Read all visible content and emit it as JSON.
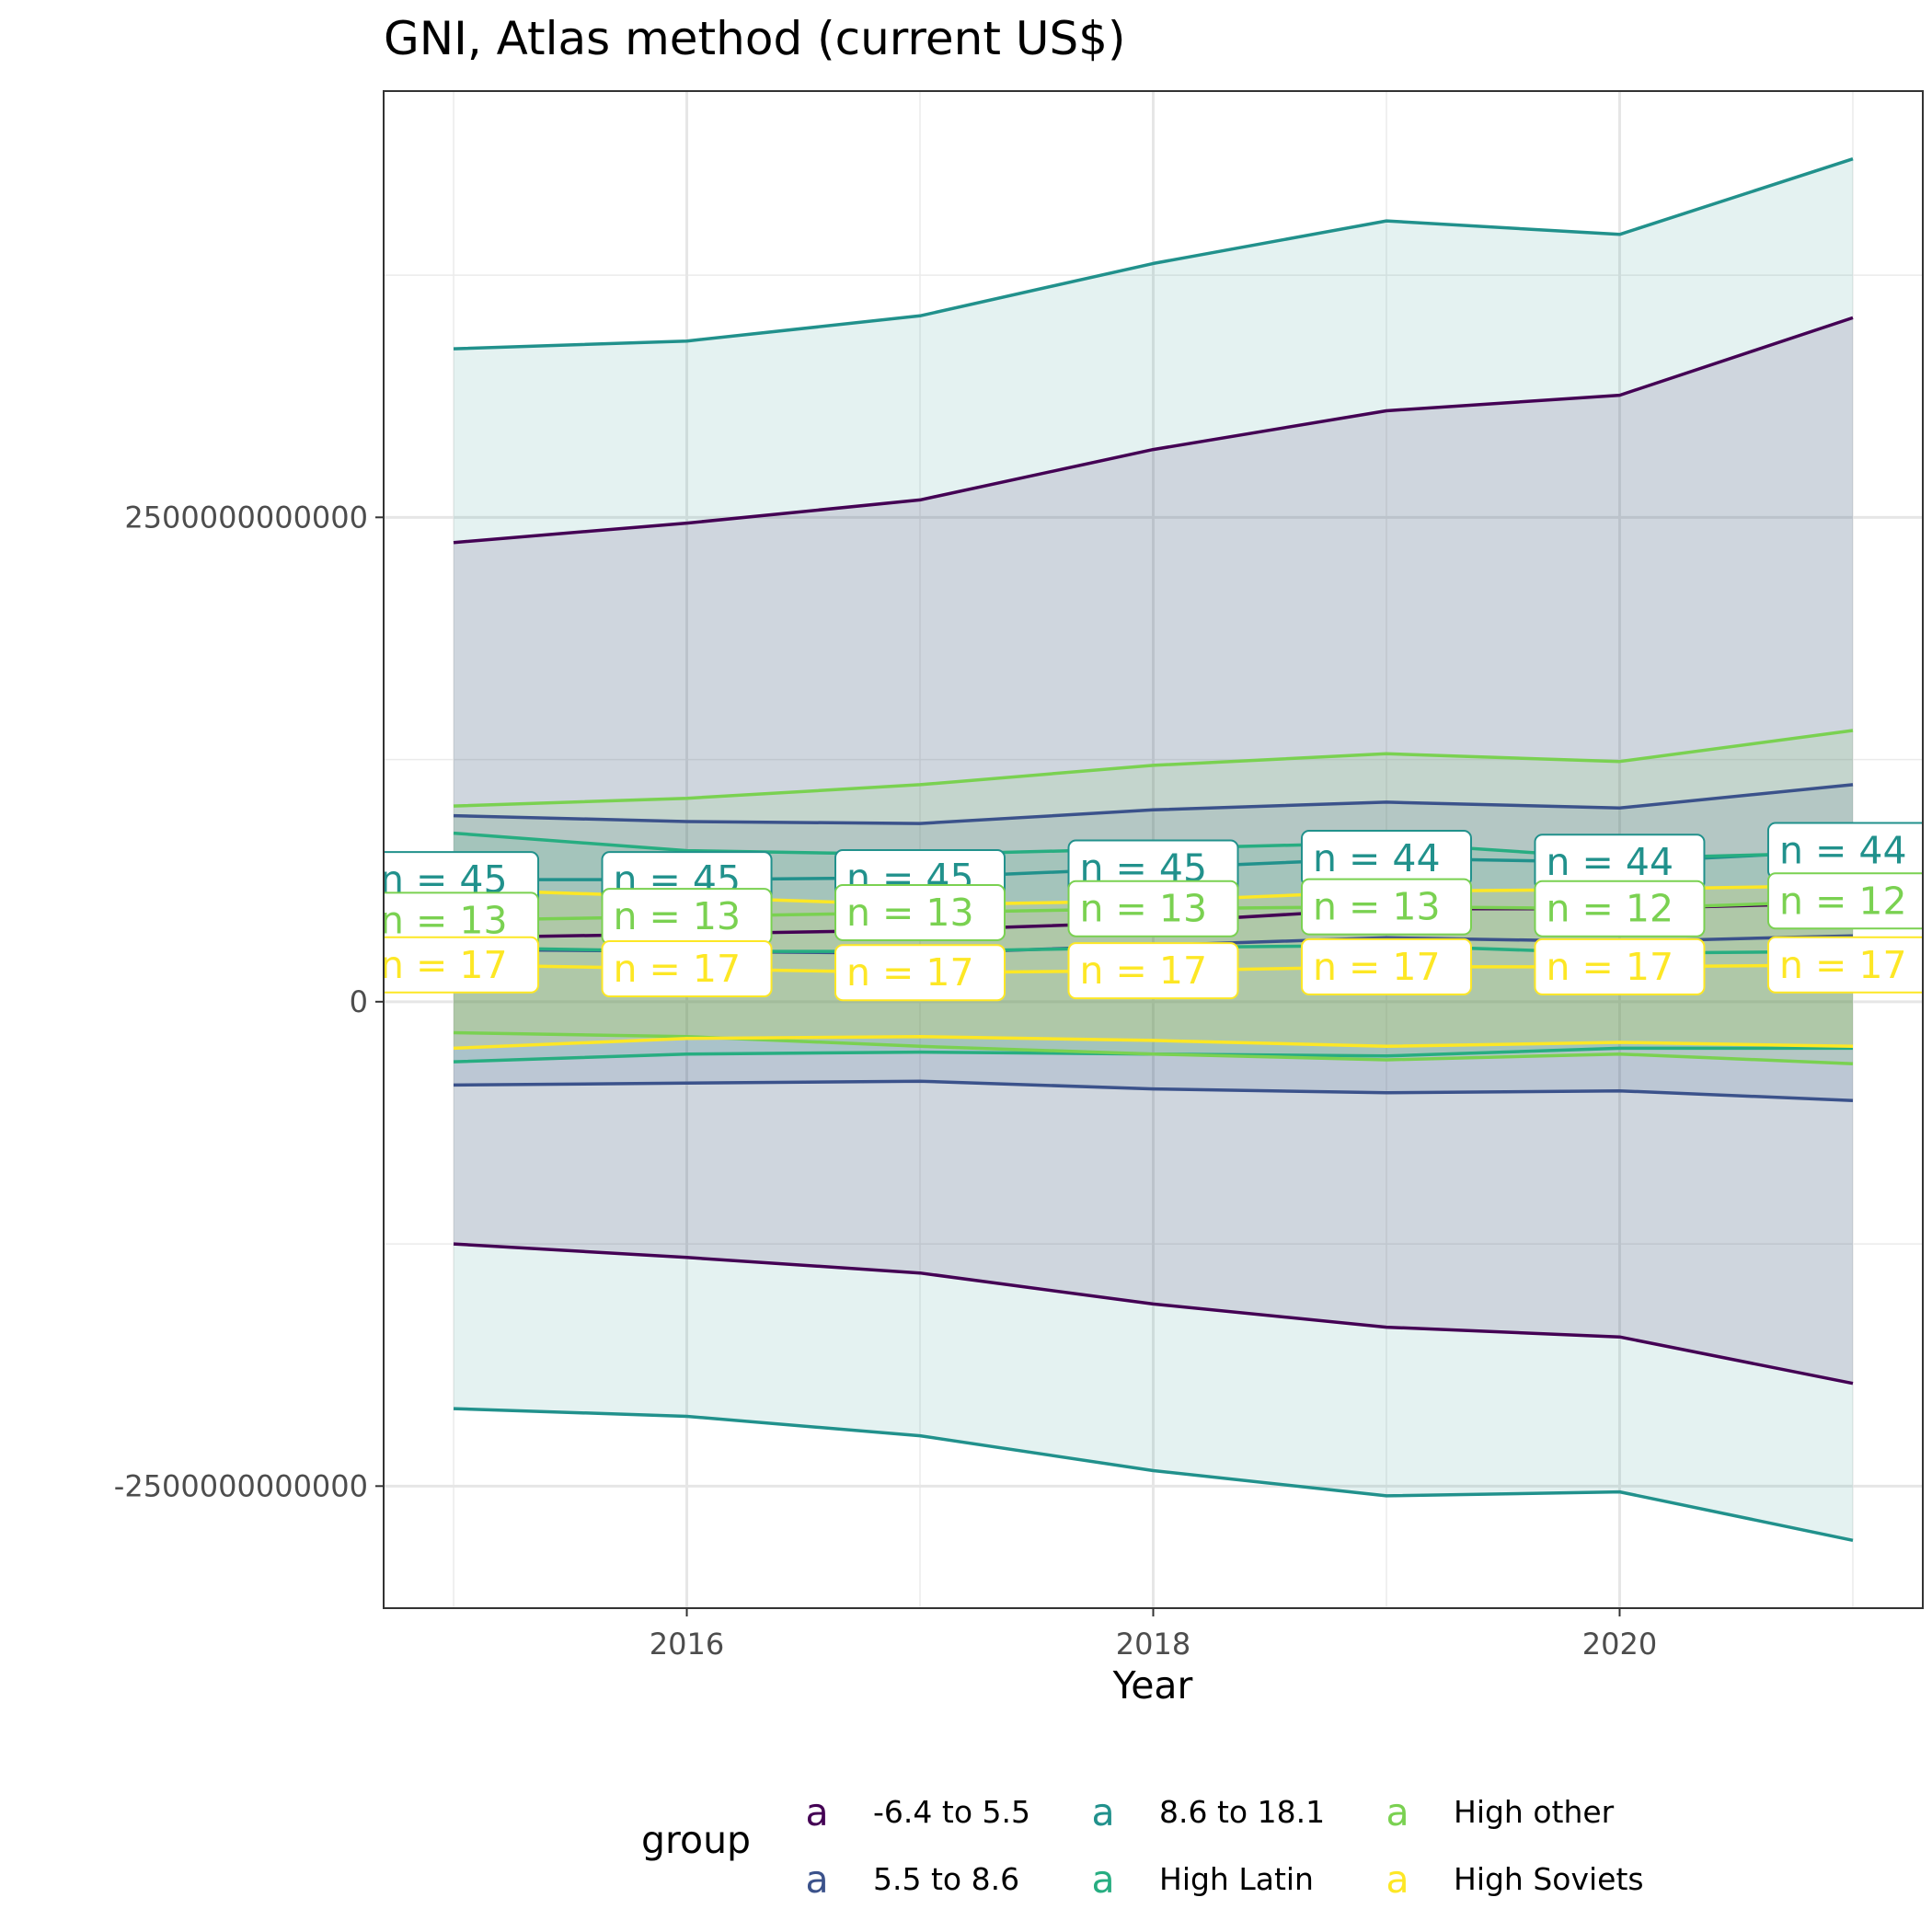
{
  "chart_data": {
    "type": "line",
    "title": "GNI, Atlas method (current US$)",
    "xlabel": "Year",
    "ylabel": "",
    "xlim": [
      2014.7,
      2021.3
    ],
    "ylim": [
      -3130000000000,
      4700000000000
    ],
    "x_ticks": [
      {
        "value": 2016,
        "label": "2016"
      },
      {
        "value": 2018,
        "label": "2018"
      },
      {
        "value": 2020,
        "label": "2020"
      }
    ],
    "y_ticks": [
      {
        "value": 2500000000000,
        "label": "2500000000000"
      },
      {
        "value": 0,
        "label": "0"
      },
      {
        "value": -2500000000000,
        "label": "-2500000000000"
      }
    ],
    "x_minor_ticks": [
      2015,
      2017,
      2019,
      2021
    ],
    "y_minor_ticks": [
      3750000000000,
      1250000000000,
      -1250000000000
    ],
    "grid": true,
    "legend": {
      "title": "group",
      "position": "bottom",
      "key_glyph": "a"
    },
    "x": [
      2015,
      2016,
      2017,
      2018,
      2019,
      2020,
      2021
    ],
    "series": [
      {
        "name": "-6.4 to 5.5",
        "color": "#440154",
        "fill": "#440154",
        "mean": [
          330000000000,
          350000000000,
          370000000000,
          410000000000,
          480000000000,
          480000000000,
          510000000000
        ],
        "upper": [
          2370000000000,
          2470000000000,
          2590000000000,
          2850000000000,
          3050000000000,
          3130000000000,
          3530000000000
        ],
        "lower": [
          -1250000000000,
          -1320000000000,
          -1400000000000,
          -1560000000000,
          -1680000000000,
          -1730000000000,
          -1970000000000
        ],
        "n": [
          null,
          null,
          null,
          null,
          null,
          null,
          null
        ]
      },
      {
        "name": "5.5 to 8.6",
        "color": "#3b528b",
        "fill": "#3b528b",
        "mean": [
          270000000000,
          260000000000,
          250000000000,
          290000000000,
          330000000000,
          310000000000,
          340000000000
        ],
        "upper": [
          960000000000,
          930000000000,
          920000000000,
          990000000000,
          1030000000000,
          1000000000000,
          1120000000000
        ],
        "lower": [
          -430000000000,
          -420000000000,
          -410000000000,
          -450000000000,
          -470000000000,
          -460000000000,
          -510000000000
        ],
        "n": [
          null,
          null,
          null,
          null,
          null,
          null,
          null
        ]
      },
      {
        "name": "8.6 to 18.1",
        "color": "#21918c",
        "fill": "#21918c",
        "mean": [
          630000000000,
          630000000000,
          640000000000,
          690000000000,
          740000000000,
          720000000000,
          780000000000
        ],
        "upper": [
          3370000000000,
          3410000000000,
          3540000000000,
          3810000000000,
          4030000000000,
          3960000000000,
          4350000000000
        ],
        "lower": [
          -2100000000000,
          -2140000000000,
          -2240000000000,
          -2420000000000,
          -2550000000000,
          -2530000000000,
          -2780000000000
        ],
        "n": [
          45,
          45,
          45,
          45,
          44,
          44,
          44
        ]
      },
      {
        "name": "High Latin",
        "color": "#27ad81",
        "fill": "#27ad81",
        "mean": [
          280000000000,
          260000000000,
          260000000000,
          280000000000,
          290000000000,
          250000000000,
          260000000000
        ],
        "upper": [
          870000000000,
          780000000000,
          760000000000,
          790000000000,
          820000000000,
          740000000000,
          770000000000
        ],
        "lower": [
          -310000000000,
          -270000000000,
          -260000000000,
          -270000000000,
          -280000000000,
          -240000000000,
          -240000000000
        ],
        "n": [
          null,
          null,
          null,
          null,
          null,
          null,
          null
        ]
      },
      {
        "name": "High other",
        "color": "#7ad151",
        "fill": "#7ad151",
        "mean": [
          420000000000,
          440000000000,
          460000000000,
          480000000000,
          490000000000,
          480000000000,
          520000000000
        ],
        "upper": [
          1010000000000,
          1050000000000,
          1120000000000,
          1220000000000,
          1280000000000,
          1240000000000,
          1400000000000
        ],
        "lower": [
          -160000000000,
          -180000000000,
          -230000000000,
          -270000000000,
          -300000000000,
          -270000000000,
          -320000000000
        ],
        "n": [
          13,
          13,
          13,
          13,
          13,
          12,
          12
        ]
      },
      {
        "name": "High Soviets",
        "color": "#fde725",
        "fill": "#fde725",
        "mean": [
          190000000000,
          170000000000,
          150000000000,
          160000000000,
          180000000000,
          180000000000,
          190000000000
        ],
        "upper": [
          580000000000,
          540000000000,
          500000000000,
          520000000000,
          570000000000,
          580000000000,
          600000000000
        ],
        "lower": [
          -240000000000,
          -190000000000,
          -180000000000,
          -200000000000,
          -230000000000,
          -210000000000,
          -230000000000
        ],
        "n": [
          17,
          17,
          17,
          17,
          17,
          17,
          17
        ]
      }
    ]
  }
}
